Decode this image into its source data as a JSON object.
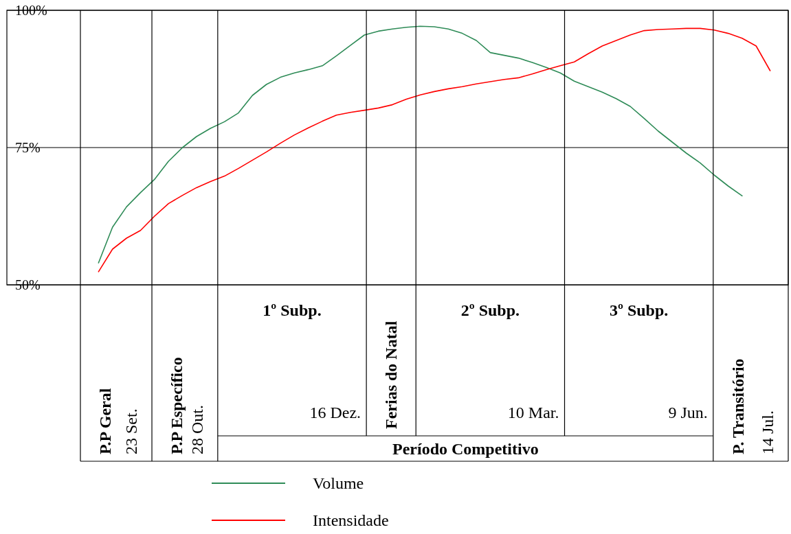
{
  "chart_data": [
    {
      "type": "line",
      "categories": [
        null,
        null,
        null,
        null,
        null,
        null,
        null,
        null,
        null,
        null,
        null,
        null,
        null,
        null,
        null,
        null,
        null,
        null,
        null,
        null,
        null,
        null,
        null,
        null,
        null,
        null,
        null,
        null,
        null,
        null,
        null,
        null,
        null,
        null,
        null,
        null,
        null,
        null,
        null,
        null,
        null,
        null,
        null,
        null,
        null,
        null,
        null,
        null,
        null,
        null,
        null
      ],
      "ylim": [
        50,
        100
      ],
      "yticks": [
        {
          "value": 50,
          "label": "50%"
        },
        {
          "value": 75,
          "label": "75%"
        },
        {
          "value": 100,
          "label": "100%"
        }
      ],
      "tick_labels": "y",
      "grid": "y",
      "legend": "bottom",
      "series": [
        {
          "name": "Volume",
          "color": "#2e8b57",
          "values": [
            null,
            54,
            60.5,
            64.2,
            66.8,
            69.2,
            72.5,
            75,
            77,
            78.5,
            79.7,
            81.3,
            84.5,
            86.5,
            87.8,
            88.6,
            89.2,
            89.9,
            91.7,
            93.6,
            95.5,
            96.2,
            96.6,
            96.9,
            97.1,
            97,
            96.6,
            95.8,
            94.5,
            92.3,
            91.8,
            91.3,
            90.5,
            89.6,
            88.6,
            87.1,
            86.1,
            85.1,
            83.9,
            82.5,
            80.3,
            78,
            76,
            74,
            72.2,
            70,
            68,
            66.2,
            null,
            null,
            null
          ]
        },
        {
          "name": "Intensidade",
          "color": "#ff0000",
          "values": [
            null,
            52.4,
            56.5,
            58.5,
            59.9,
            62.5,
            64.8,
            66.3,
            67.7,
            68.8,
            69.8,
            71.2,
            72.7,
            74.2,
            75.8,
            77.3,
            78.6,
            79.8,
            80.9,
            81.4,
            81.8,
            82.2,
            82.8,
            83.8,
            84.6,
            85.2,
            85.7,
            86.1,
            86.6,
            87,
            87.4,
            87.7,
            88.4,
            89.2,
            89.9,
            90.6,
            92.1,
            93.5,
            94.5,
            95.5,
            96.3,
            96.5,
            96.6,
            96.7,
            96.7,
            96.4,
            95.8,
            94.9,
            93.5,
            89,
            null
          ]
        }
      ]
    },
    {
      "type": "other",
      "categories": [
        "P.P Geral",
        "P.P Específico",
        "1º Subp.",
        "Ferias do Natal",
        "2º Subp.",
        "3º Subp.",
        "P. Transitório"
      ],
      "annotations": [
        "23 Set.",
        "28 Out.",
        "16 Dez.",
        "10 Mar.",
        "9 Jun.",
        "14 Jul.",
        "Período Competitivo"
      ]
    }
  ]
}
